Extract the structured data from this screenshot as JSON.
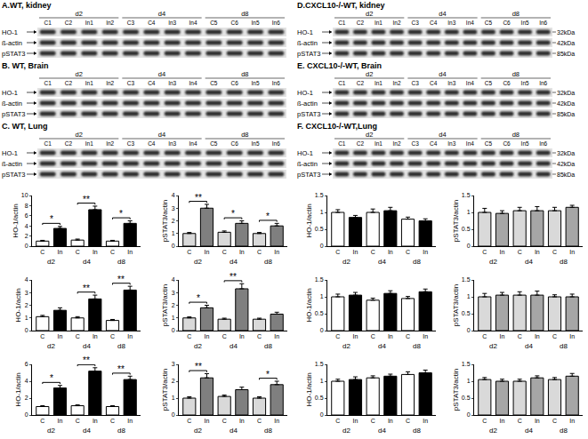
{
  "blots": [
    {
      "title": "A.WT, kidney",
      "days": [
        "d2",
        "d4",
        "d8"
      ],
      "lanes": [
        [
          "C1",
          "C2",
          "In1",
          "In2"
        ],
        [
          "C3",
          "C4",
          "In3",
          "In4"
        ],
        [
          "C5",
          "C6",
          "In5",
          "In6"
        ]
      ],
      "rows": [
        "HO-1",
        "ß-actin",
        "pSTAT3"
      ]
    },
    {
      "title": "B. WT, Brain",
      "days": [
        "d2",
        "d4",
        "d8"
      ],
      "lanes": [
        [
          "C1",
          "C2",
          "In1",
          "In2"
        ],
        [
          "C3",
          "C4",
          "In3",
          "In4"
        ],
        [
          "C5",
          "C6",
          "In5",
          "In6"
        ]
      ],
      "rows": [
        "HO-1",
        "ß-actin",
        "pSTAT3"
      ]
    },
    {
      "title": "C. WT, Lung",
      "days": [
        "d2",
        "d4",
        "d8"
      ],
      "lanes": [
        [
          "C1",
          "C2",
          "In1",
          "In2"
        ],
        [
          "C3",
          "C4",
          "In3",
          "In4"
        ],
        [
          "C5",
          "C6",
          "In5",
          "In6"
        ]
      ],
      "rows": [
        "HO-1",
        "ß-actin",
        "pSTAT3"
      ]
    },
    {
      "title": "D.CXCL10-/-WT, kidney",
      "days": [
        "d2",
        "d4",
        "d8"
      ],
      "lanes": [
        [
          "C1",
          "C2",
          "In1",
          "In2"
        ],
        [
          "C3",
          "C4",
          "In3",
          "In4"
        ],
        [
          "C5",
          "C6",
          "In5",
          "In6"
        ]
      ],
      "rows": [
        "HO-1",
        "ß-actin",
        "pSTAT3"
      ],
      "kDa": [
        "32kDa",
        "42kDa",
        "85kDa"
      ]
    },
    {
      "title": "E. CXCL10-/-WT, Brain",
      "days": [
        "d2",
        "d4",
        "d8"
      ],
      "lanes": [
        [
          "C1",
          "C2",
          "In1",
          "In2"
        ],
        [
          "C3",
          "C4",
          "In3",
          "In4"
        ],
        [
          "C5",
          "C6",
          "In5",
          "In6"
        ]
      ],
      "rows": [
        "HO-1",
        "ß-actin",
        "pSTAT3"
      ],
      "kDa": [
        "32kDa",
        "42kDa",
        "85kDa"
      ]
    },
    {
      "title": "F. CXCL10-/-WT,Lung",
      "days": [
        "d2",
        "d4",
        "d8"
      ],
      "lanes": [
        [
          "C1",
          "C2",
          "In1",
          "In2"
        ],
        [
          "C3",
          "C4",
          "In3",
          "In4"
        ],
        [
          "C5",
          "C6",
          "In5",
          "In6"
        ]
      ],
      "rows": [
        "HO-1",
        "ß-actin",
        "pSTAT3"
      ],
      "kDa": [
        "32kDa",
        "42kDa",
        "85kDa"
      ]
    }
  ],
  "chart_data": [
    {
      "type": "bar",
      "y_label": "HO-1/actin",
      "groups": [
        "d2",
        "d4",
        "d8"
      ],
      "ylim": [
        0,
        10
      ],
      "yticks": [
        0,
        2,
        4,
        6,
        8,
        10
      ],
      "series": [
        {
          "name": "C",
          "color": "#ffffff",
          "values": [
            1.0,
            1.2,
            1.0
          ],
          "errors": [
            0.15,
            0.2,
            0.15
          ]
        },
        {
          "name": "In",
          "color": "#000000",
          "values": [
            3.5,
            7.2,
            4.5
          ],
          "errors": [
            0.4,
            0.7,
            0.5
          ]
        }
      ],
      "annotations": [
        "*",
        "**",
        "*"
      ]
    },
    {
      "type": "bar",
      "y_label": "pSTAT3/actin",
      "groups": [
        "d2",
        "d4",
        "d8"
      ],
      "ylim": [
        0,
        4
      ],
      "yticks": [
        0,
        1,
        2,
        3,
        4
      ],
      "series": [
        {
          "name": "C",
          "color": "#d9d9d9",
          "values": [
            1.0,
            1.1,
            1.0
          ],
          "errors": [
            0.08,
            0.1,
            0.08
          ]
        },
        {
          "name": "In",
          "color": "#7f7f7f",
          "values": [
            3.0,
            1.8,
            1.6
          ],
          "errors": [
            0.3,
            0.2,
            0.2
          ]
        }
      ],
      "annotations": [
        "**",
        "*",
        "*"
      ]
    },
    {
      "type": "bar",
      "y_label": "HO-1/actin",
      "groups": [
        "d2",
        "d4",
        "d8"
      ],
      "ylim": [
        0,
        4
      ],
      "yticks": [
        0,
        1,
        2,
        3,
        4
      ],
      "series": [
        {
          "name": "C",
          "color": "#ffffff",
          "values": [
            1.1,
            1.0,
            0.8
          ],
          "errors": [
            0.1,
            0.1,
            0.08
          ]
        },
        {
          "name": "In",
          "color": "#000000",
          "values": [
            1.6,
            2.5,
            3.2
          ],
          "errors": [
            0.2,
            0.3,
            0.3
          ]
        }
      ],
      "annotations": [
        null,
        "**",
        "**"
      ]
    },
    {
      "type": "bar",
      "y_label": "pSTAT3/actin",
      "groups": [
        "d2",
        "d4",
        "d8"
      ],
      "ylim": [
        0,
        4
      ],
      "yticks": [
        0,
        1,
        2,
        3,
        4
      ],
      "series": [
        {
          "name": "C",
          "color": "#d9d9d9",
          "values": [
            1.0,
            0.9,
            0.9
          ],
          "errors": [
            0.08,
            0.08,
            0.08
          ]
        },
        {
          "name": "In",
          "color": "#7f7f7f",
          "values": [
            1.8,
            3.3,
            1.3
          ],
          "errors": [
            0.2,
            0.4,
            0.15
          ]
        }
      ],
      "annotations": [
        "*",
        "**",
        null
      ]
    },
    {
      "type": "bar",
      "y_label": "HO-1/actin",
      "groups": [
        "d2",
        "d4",
        "d8"
      ],
      "ylim": [
        0,
        6
      ],
      "yticks": [
        0,
        2,
        4,
        6
      ],
      "series": [
        {
          "name": "C",
          "color": "#ffffff",
          "values": [
            1.0,
            1.1,
            1.0
          ],
          "errors": [
            0.1,
            0.1,
            0.1
          ]
        },
        {
          "name": "In",
          "color": "#000000",
          "values": [
            3.2,
            5.2,
            4.2
          ],
          "errors": [
            0.3,
            0.4,
            0.4
          ]
        }
      ],
      "annotations": [
        "*",
        "**",
        "**"
      ]
    },
    {
      "type": "bar",
      "y_label": "pSTAT3/actin",
      "groups": [
        "d2",
        "d4",
        "d8"
      ],
      "ylim": [
        0,
        3
      ],
      "yticks": [
        0,
        1,
        2,
        3
      ],
      "series": [
        {
          "name": "C",
          "color": "#d9d9d9",
          "values": [
            1.0,
            1.1,
            1.0
          ],
          "errors": [
            0.08,
            0.08,
            0.08
          ]
        },
        {
          "name": "In",
          "color": "#7f7f7f",
          "values": [
            2.2,
            1.5,
            1.8
          ],
          "errors": [
            0.25,
            0.15,
            0.2
          ]
        }
      ],
      "annotations": [
        "**",
        null,
        "*"
      ]
    },
    {
      "type": "bar",
      "y_label": "HO-1/actin",
      "groups": [
        "d2",
        "d4",
        "d8"
      ],
      "ylim": [
        0,
        1.5
      ],
      "yticks": [
        0,
        0.5,
        1,
        1.5
      ],
      "series": [
        {
          "name": "C",
          "color": "#ffffff",
          "values": [
            1.0,
            1.0,
            0.8
          ],
          "errors": [
            0.08,
            0.1,
            0.06
          ]
        },
        {
          "name": "In",
          "color": "#000000",
          "values": [
            0.85,
            1.05,
            0.75
          ],
          "errors": [
            0.06,
            0.1,
            0.06
          ]
        }
      ],
      "annotations": [
        null,
        null,
        null
      ]
    },
    {
      "type": "bar",
      "y_label": "pSTAT3/actin",
      "groups": [
        "d2",
        "d4",
        "d8"
      ],
      "ylim": [
        0,
        1.5
      ],
      "yticks": [
        0,
        0.5,
        1,
        1.5
      ],
      "series": [
        {
          "name": "C",
          "color": "#d9d9d9",
          "values": [
            1.0,
            1.05,
            1.05
          ],
          "errors": [
            0.12,
            0.1,
            0.1
          ]
        },
        {
          "name": "In",
          "color": "#a6a6a6",
          "values": [
            0.97,
            1.05,
            1.15
          ],
          "errors": [
            0.08,
            0.12,
            0.06
          ]
        }
      ],
      "annotations": [
        null,
        null,
        null
      ]
    },
    {
      "type": "bar",
      "y_label": "HO-1/actin",
      "groups": [
        "d2",
        "d4",
        "d8"
      ],
      "ylim": [
        0,
        1.5
      ],
      "yticks": [
        0,
        0.5,
        1,
        1.5
      ],
      "series": [
        {
          "name": "C",
          "color": "#ffffff",
          "values": [
            1.0,
            0.9,
            0.95
          ],
          "errors": [
            0.08,
            0.06,
            0.06
          ]
        },
        {
          "name": "In",
          "color": "#000000",
          "values": [
            1.05,
            1.1,
            1.15
          ],
          "errors": [
            0.08,
            0.08,
            0.08
          ]
        }
      ],
      "annotations": [
        null,
        null,
        null
      ]
    },
    {
      "type": "bar",
      "y_label": "pSTAT3/actin",
      "groups": [
        "d2",
        "d4",
        "d8"
      ],
      "ylim": [
        0,
        1.5
      ],
      "yticks": [
        0,
        0.5,
        1,
        1.5
      ],
      "series": [
        {
          "name": "C",
          "color": "#d9d9d9",
          "values": [
            1.0,
            1.05,
            1.0
          ],
          "errors": [
            0.1,
            0.1,
            0.06
          ]
        },
        {
          "name": "In",
          "color": "#a6a6a6",
          "values": [
            1.05,
            1.05,
            1.0
          ],
          "errors": [
            0.08,
            0.12,
            0.08
          ]
        }
      ],
      "annotations": [
        null,
        null,
        null
      ]
    },
    {
      "type": "bar",
      "y_label": "HO-1/actin",
      "groups": [
        "d2",
        "d4",
        "d8"
      ],
      "ylim": [
        0,
        1.5
      ],
      "yticks": [
        0,
        0.5,
        1,
        1.5
      ],
      "series": [
        {
          "name": "C",
          "color": "#ffffff",
          "values": [
            1.0,
            1.1,
            1.2
          ],
          "errors": [
            0.06,
            0.06,
            0.08
          ]
        },
        {
          "name": "In",
          "color": "#000000",
          "values": [
            1.05,
            1.15,
            1.25
          ],
          "errors": [
            0.08,
            0.06,
            0.08
          ]
        }
      ],
      "annotations": [
        null,
        null,
        null
      ]
    },
    {
      "type": "bar",
      "y_label": "pSTAT3/actin",
      "groups": [
        "d2",
        "d4",
        "d8"
      ],
      "ylim": [
        0,
        1.5
      ],
      "yticks": [
        0,
        0.5,
        1,
        1.5
      ],
      "series": [
        {
          "name": "C",
          "color": "#d9d9d9",
          "values": [
            1.05,
            1.0,
            1.05
          ],
          "errors": [
            0.06,
            0.06,
            0.06
          ]
        },
        {
          "name": "In",
          "color": "#a6a6a6",
          "values": [
            1.0,
            1.1,
            1.15
          ],
          "errors": [
            0.06,
            0.06,
            0.08
          ]
        }
      ],
      "annotations": [
        null,
        null,
        null
      ]
    }
  ]
}
